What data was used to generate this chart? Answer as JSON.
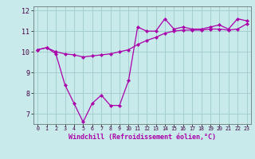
{
  "line1": [
    10.1,
    10.2,
    9.9,
    8.4,
    7.5,
    6.6,
    7.5,
    7.9,
    7.4,
    7.4,
    8.6,
    11.2,
    11.0,
    11.0,
    11.6,
    11.1,
    11.2,
    11.1,
    11.1,
    11.2,
    11.3,
    11.1,
    11.6,
    11.5
  ],
  "line2": [
    10.1,
    10.2,
    10.0,
    9.9,
    9.85,
    9.75,
    9.8,
    9.85,
    9.9,
    10.0,
    10.1,
    10.35,
    10.55,
    10.7,
    10.9,
    11.0,
    11.05,
    11.05,
    11.05,
    11.1,
    11.1,
    11.05,
    11.1,
    11.35
  ],
  "x": [
    0,
    1,
    2,
    3,
    4,
    5,
    6,
    7,
    8,
    9,
    10,
    11,
    12,
    13,
    14,
    15,
    16,
    17,
    18,
    19,
    20,
    21,
    22,
    23
  ],
  "color": "#aa00aa",
  "bg_color": "#c8eaea",
  "grid_color": "#a0cccc",
  "ylim_min": 6.5,
  "ylim_max": 12.2,
  "xlim_min": -0.5,
  "xlim_max": 23.5,
  "xlabel": "Windchill (Refroidissement éolien,°C)",
  "yticks": [
    7,
    8,
    9,
    10,
    11,
    12
  ],
  "ytick_labels": [
    "7",
    "8",
    "9",
    "10",
    "11",
    "12"
  ],
  "xtick_labels": [
    "0",
    "1",
    "2",
    "3",
    "4",
    "5",
    "6",
    "7",
    "8",
    "9",
    "10",
    "11",
    "12",
    "13",
    "14",
    "15",
    "16",
    "17",
    "18",
    "19",
    "20",
    "21",
    "22",
    "23"
  ]
}
